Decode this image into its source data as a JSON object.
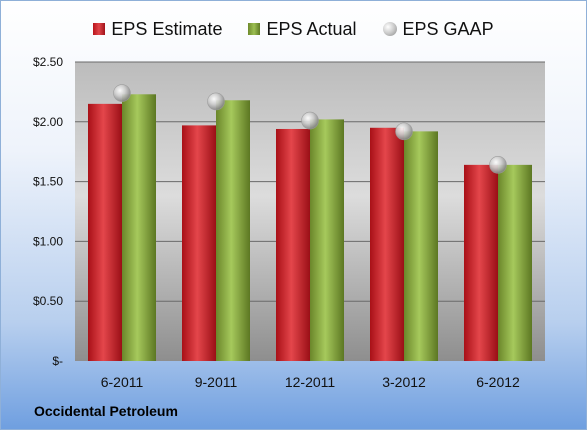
{
  "chart_data": {
    "type": "bar",
    "categories": [
      "6-2011",
      "9-2011",
      "12-2011",
      "3-2012",
      "6-2012"
    ],
    "series": [
      {
        "name": "EPS Estimate",
        "values": [
          2.15,
          1.97,
          1.94,
          1.95,
          1.64
        ],
        "color": "#c8171e"
      },
      {
        "name": "EPS Actual",
        "values": [
          2.23,
          2.18,
          2.02,
          1.92,
          1.64
        ],
        "color": "#8bb043"
      },
      {
        "name": "EPS GAAP",
        "values": [
          2.24,
          2.17,
          2.01,
          1.92,
          1.64
        ],
        "color": "#bdbdbd",
        "marker": "circle"
      }
    ],
    "yticks": [
      "$-",
      "$0.50",
      "$1.00",
      "$1.50",
      "$2.00",
      "$2.50"
    ],
    "ylim": [
      0,
      2.5
    ],
    "grid": true,
    "legend": "top"
  },
  "footer": {
    "company": "Occidental Petroleum"
  }
}
